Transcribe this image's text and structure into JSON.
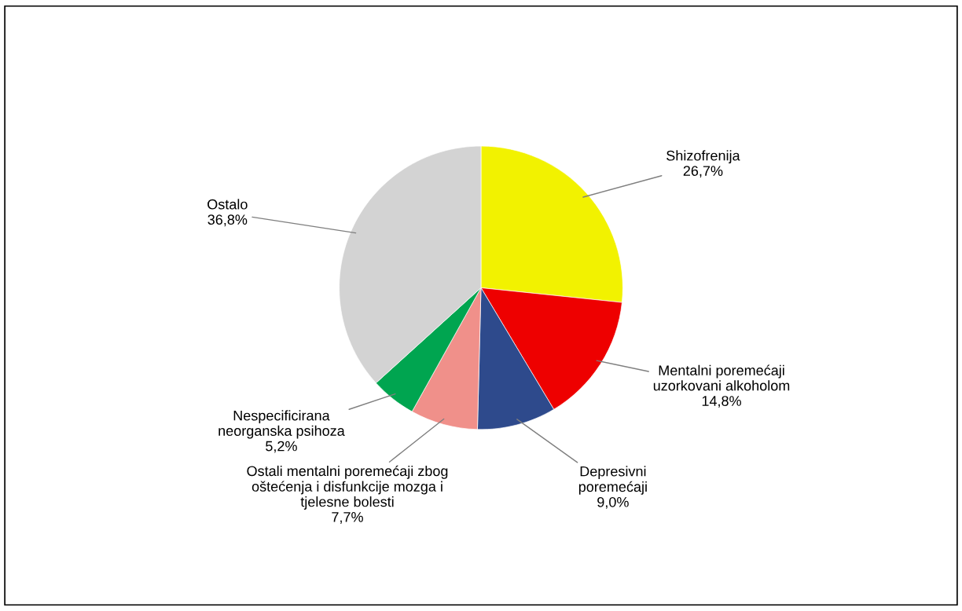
{
  "chart_data": {
    "type": "pie",
    "categories": [
      "Shizofrenija",
      "Mentalni poremećaji\nuzorkovani alkoholom",
      "Depresivni\nporemećaji",
      "Ostali mentalni poremećaji zbog\noštećenja i disfunkcije mozga i\ntjelesne bolesti",
      "Nespecificirana\nneorganska psihoza",
      "Ostalo"
    ],
    "values": [
      26.7,
      14.8,
      9.0,
      7.7,
      5.2,
      36.8
    ],
    "value_labels": [
      "26,7%",
      "14,8%",
      "9,0%",
      "7,7%",
      "5,2%",
      "36,8%"
    ],
    "colors": [
      "#f2f200",
      "#ee0000",
      "#2e4a8c",
      "#f0908a",
      "#00a550",
      "#d3d3d3"
    ],
    "legend": false
  }
}
